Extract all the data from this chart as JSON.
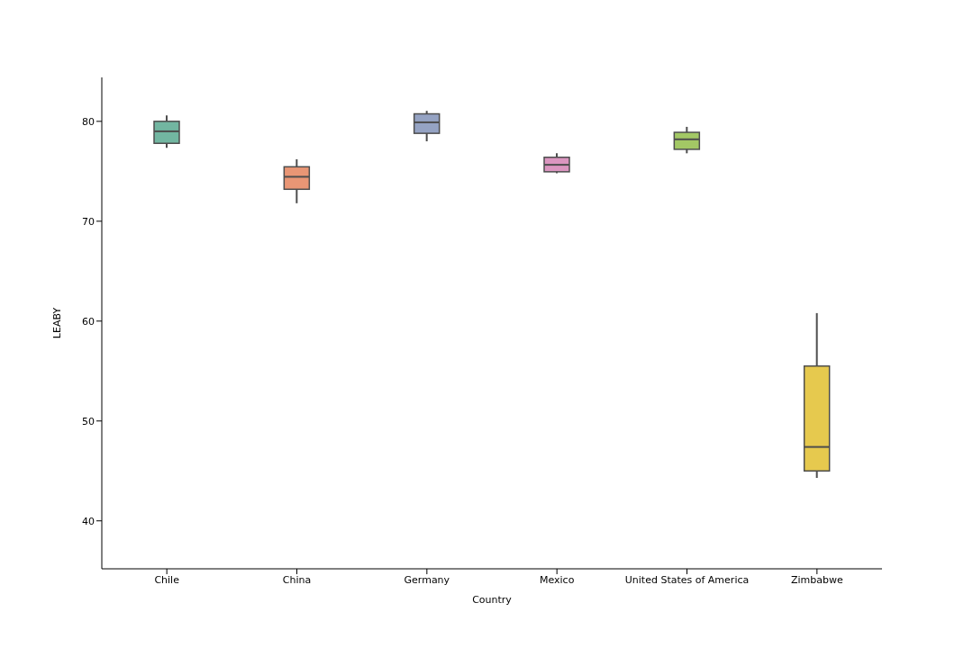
{
  "chart_data": {
    "type": "box",
    "xlabel": "Country",
    "ylabel": "LEABY",
    "categories": [
      "Chile",
      "China",
      "Germany",
      "Mexico",
      "United States of America",
      "Zimbabwe"
    ],
    "colors": [
      "#72b6a1",
      "#e99675",
      "#95a3c3",
      "#db96c0",
      "#a3c865",
      "#e6c94e"
    ],
    "boxes": [
      {
        "low": 77.35,
        "q1": 77.8,
        "median": 79.0,
        "q3": 80.0,
        "high": 80.6
      },
      {
        "low": 71.8,
        "q1": 73.2,
        "median": 74.45,
        "q3": 75.45,
        "high": 76.2
      },
      {
        "low": 78.0,
        "q1": 78.8,
        "median": 79.9,
        "q3": 80.75,
        "high": 81.05
      },
      {
        "low": 74.8,
        "q1": 74.95,
        "median": 75.65,
        "q3": 76.4,
        "high": 76.8
      },
      {
        "low": 76.8,
        "q1": 77.2,
        "median": 78.2,
        "q3": 78.9,
        "high": 79.45
      },
      {
        "low": 44.3,
        "q1": 45.0,
        "median": 47.4,
        "q3": 55.5,
        "high": 60.8
      }
    ],
    "ylim": [
      35.2,
      84.4
    ],
    "yticks": [
      40,
      50,
      60,
      70,
      80
    ],
    "grid": false
  }
}
